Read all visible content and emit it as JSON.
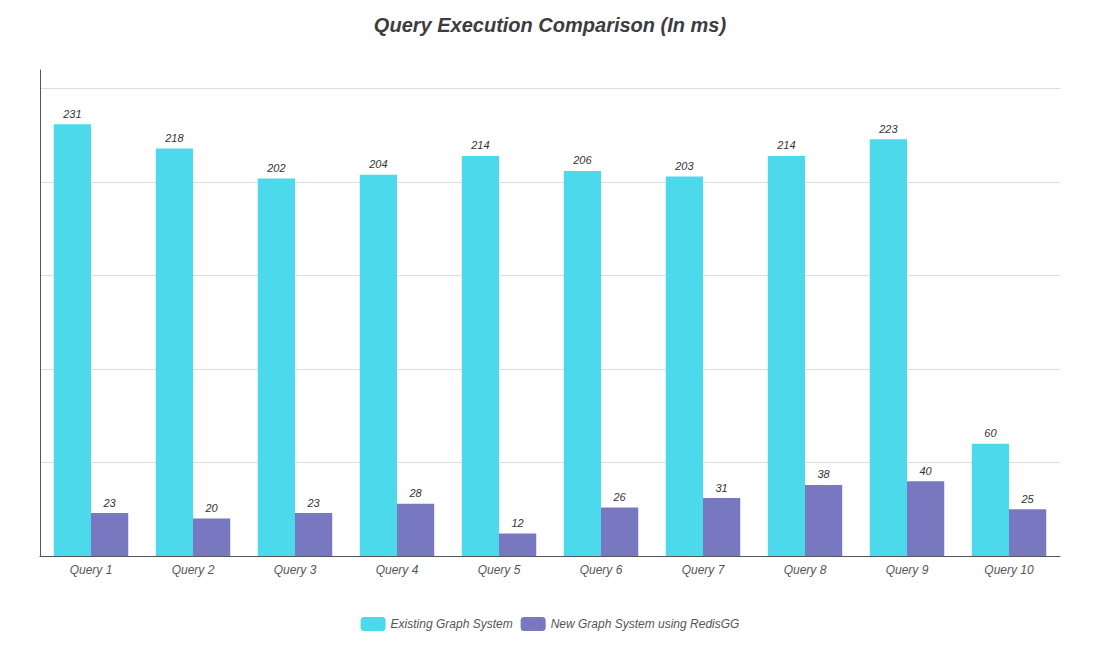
{
  "chart_data": {
    "type": "bar",
    "title": "Query Execution Comparison (In ms)",
    "categories": [
      "Query 1",
      "Query 2",
      "Query 3",
      "Query 4",
      "Query 5",
      "Query 6",
      "Query 7",
      "Query 8",
      "Query 9",
      "Query 10"
    ],
    "series": [
      {
        "name": "Existing Graph System",
        "color": "#4DD9EC",
        "values": [
          231,
          218,
          202,
          204,
          214,
          206,
          203,
          214,
          223,
          60
        ]
      },
      {
        "name": "New Graph System using RedisGG",
        "color": "#7878C0",
        "values": [
          23,
          20,
          23,
          28,
          12,
          26,
          31,
          38,
          40,
          25
        ]
      }
    ],
    "ylim": [
      0,
      260
    ],
    "yticks": [
      0,
      50,
      100,
      150,
      200,
      250
    ],
    "grid": true,
    "legend": "bottom",
    "data_labels": true,
    "tick_labels": "x"
  }
}
